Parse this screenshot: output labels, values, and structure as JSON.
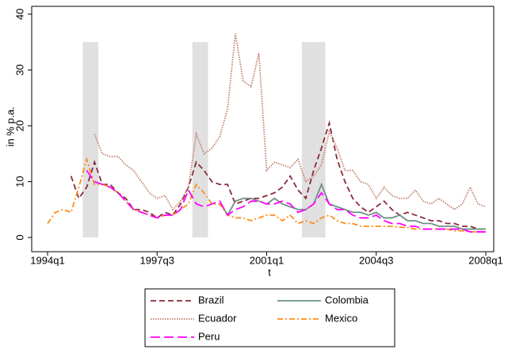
{
  "chart_data": {
    "type": "line",
    "y_label": "in % p.a.",
    "x_label": "t",
    "categories": [
      "1994q1",
      null,
      null,
      null,
      null,
      null,
      null,
      null,
      null,
      null,
      null,
      null,
      null,
      null,
      "1997q3",
      null,
      null,
      null,
      null,
      null,
      null,
      null,
      null,
      null,
      null,
      null,
      null,
      null,
      "2001q1",
      null,
      null,
      null,
      null,
      null,
      null,
      null,
      null,
      null,
      null,
      null,
      null,
      null,
      "2004q3",
      null,
      null,
      null,
      null,
      null,
      null,
      null,
      null,
      null,
      null,
      null,
      null,
      null,
      "2008q1"
    ],
    "ylim": [
      -2.55,
      41.4
    ],
    "yticks": [
      0,
      10,
      20,
      30,
      40
    ],
    "shading": {
      "color": "#e0e0e0",
      "values": [
        null,
        null,
        null,
        null,
        null,
        35,
        35,
        null,
        null,
        null,
        null,
        null,
        null,
        null,
        null,
        null,
        null,
        null,
        null,
        35,
        35,
        null,
        null,
        null,
        null,
        null,
        null,
        null,
        null,
        null,
        null,
        null,
        null,
        35,
        35,
        35,
        null,
        null,
        null,
        null,
        null,
        null,
        null,
        null,
        null,
        null,
        null,
        null,
        null,
        null,
        null,
        null,
        null,
        null,
        null,
        null,
        null
      ]
    },
    "series": [
      {
        "name": "Brazil",
        "color": "#8b2a3a",
        "dash": "7,4",
        "values": [
          null,
          null,
          null,
          11,
          7,
          9,
          13.5,
          9.5,
          9.5,
          8,
          7,
          5,
          5,
          4.5,
          3.5,
          4.5,
          4,
          6,
          9,
          13.5,
          12,
          10,
          9.5,
          9.5,
          6,
          6.5,
          7,
          7,
          7.5,
          8,
          9,
          11,
          8.5,
          7,
          12,
          16,
          20.5,
          14,
          10,
          7,
          5.5,
          4.5,
          5.5,
          6.5,
          5,
          4,
          4.5,
          4,
          3.5,
          3,
          3,
          2.5,
          2.5,
          2,
          2,
          1.5,
          1.5
        ]
      },
      {
        "name": "Colombia",
        "color": "#6f8f87",
        "dash": "none",
        "values": [
          null,
          null,
          null,
          null,
          null,
          null,
          null,
          null,
          null,
          null,
          null,
          null,
          null,
          null,
          null,
          null,
          null,
          null,
          null,
          null,
          null,
          null,
          6.5,
          4,
          6.5,
          7,
          7,
          6.5,
          6,
          7,
          6,
          5.5,
          5,
          5,
          6,
          9.5,
          6,
          5.5,
          5,
          4.5,
          4.5,
          4,
          4.5,
          3.5,
          3.5,
          4,
          3,
          3,
          2.5,
          2.5,
          2,
          2,
          2,
          1.5,
          1.5,
          1.5,
          1.5
        ]
      },
      {
        "name": "Ecuador",
        "color": "#c0806a",
        "dash": "1.5,1.5",
        "values": [
          null,
          null,
          null,
          null,
          null,
          null,
          18.5,
          15,
          14.5,
          14.5,
          13,
          12,
          10,
          8,
          7,
          7.5,
          5,
          6.5,
          9,
          18.5,
          15,
          16,
          18,
          23,
          36.5,
          28,
          27,
          33,
          12,
          13.5,
          13,
          12.5,
          14,
          10,
          11,
          13,
          19,
          16,
          12,
          12,
          10,
          9.5,
          7,
          9,
          7.5,
          7,
          7,
          8.5,
          6.5,
          6,
          7,
          6,
          5,
          6,
          9,
          6,
          5.5
        ]
      },
      {
        "name": "Mexico",
        "color": "#ff8c1a",
        "dash": "7,3,2,3",
        "values": [
          2.5,
          4.5,
          5,
          4.5,
          9,
          14,
          9.5,
          9.5,
          9,
          8,
          6.5,
          5,
          4.5,
          4,
          3.5,
          4,
          4,
          5,
          6,
          9.5,
          8,
          6,
          6,
          4,
          3.5,
          3.5,
          3,
          3.5,
          4,
          4,
          3,
          4,
          2.5,
          3,
          2.5,
          3.5,
          4,
          3,
          2.5,
          2.5,
          2,
          2,
          2,
          2,
          2,
          1.8,
          1.8,
          1.5,
          1.5,
          1.5,
          1.5,
          1.5,
          1.2,
          1.2,
          1,
          1,
          1
        ]
      },
      {
        "name": "Peru",
        "color": "#ff00ff",
        "dash": "12,5",
        "values": [
          null,
          null,
          null,
          null,
          null,
          12,
          10,
          9.5,
          9,
          8,
          6.5,
          5,
          4.5,
          4,
          3.5,
          4,
          4,
          5,
          8.5,
          6,
          5.5,
          6,
          6.5,
          4,
          5,
          5.5,
          6.5,
          6.5,
          6,
          6,
          6.5,
          6,
          4.5,
          5,
          6,
          8,
          6,
          5,
          5,
          4,
          3.5,
          3.5,
          4,
          3,
          2.5,
          2.5,
          2,
          2,
          1.5,
          1.5,
          1.5,
          1.5,
          1.5,
          1.5,
          1,
          1,
          1
        ]
      }
    ]
  }
}
